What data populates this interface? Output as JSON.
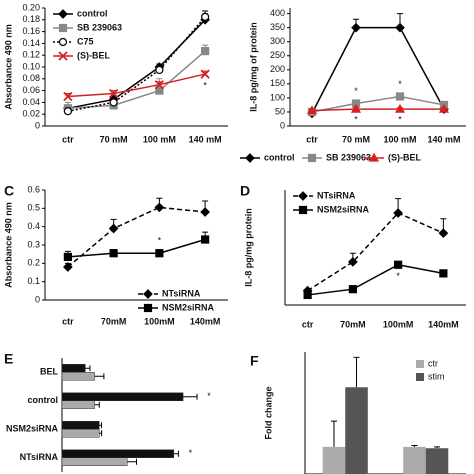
{
  "chart_data": [
    {
      "type": "line",
      "ylabel": "Absorbance 490 nm",
      "categories": [
        "ctr",
        "70 mM",
        "100 mM",
        "140 mM"
      ],
      "ylim": [
        0,
        0.2
      ],
      "yticks": [
        0,
        0.02,
        0.04,
        0.06,
        0.08,
        {
          "value": 0.1,
          "label": "0.10"
        },
        0.12,
        0.14,
        0.16,
        0.18,
        {
          "value": 0.2,
          "label": "0.20"
        }
      ],
      "legend": "upper left",
      "series": [
        {
          "name": "control",
          "color": "#000000",
          "dash": "solid",
          "marker": "diamond",
          "values": [
            0.03,
            0.045,
            0.1,
            0.18
          ],
          "errors": [
            0.005,
            0.005,
            0.005,
            0.01
          ]
        },
        {
          "name": "SB 239063",
          "color": "#888888",
          "dash": "solid",
          "marker": "square",
          "values": [
            0.03,
            0.035,
            0.06,
            0.127
          ],
          "errors": [
            0.01,
            0.01,
            0.02,
            0.01
          ]
        },
        {
          "name": "C75",
          "color": "#000000",
          "dash": "dotted",
          "marker": "circle-open",
          "values": [
            0.025,
            0.04,
            0.095,
            0.185
          ],
          "errors": [
            0.005,
            0.005,
            0.005,
            0.01
          ]
        },
        {
          "name": "(S)-BEL",
          "color": "#d42020",
          "dash": "solid",
          "marker": "x",
          "values": [
            0.05,
            0.055,
            0.07,
            0.088
          ],
          "errors": [
            0.005,
            0.005,
            0.005,
            0.005
          ]
        }
      ],
      "annotations": [
        "*"
      ]
    },
    {
      "type": "line",
      "ylabel": "IL-8 pg/mg of protein",
      "categories": [
        "ctr",
        "70 mM",
        "100 mM",
        "140 mM"
      ],
      "ylim": [
        0,
        420
      ],
      "yticks": [
        0,
        50,
        100,
        150,
        200,
        250,
        300,
        350,
        400
      ],
      "legend": "below",
      "series": [
        {
          "name": "control",
          "color": "#000000",
          "dash": "solid",
          "marker": "diamond",
          "values": [
            45,
            350,
            350,
            60
          ],
          "errors": [
            5,
            30,
            50,
            10
          ]
        },
        {
          "name": "SB 239063",
          "color": "#888888",
          "dash": "solid",
          "marker": "square",
          "values": [
            50,
            80,
            105,
            75
          ],
          "errors": [
            5,
            10,
            10,
            10
          ]
        },
        {
          "name": "(S)-BEL",
          "color": "#d42020",
          "dash": "solid",
          "marker": "triangle",
          "values": [
            55,
            60,
            60,
            60
          ],
          "errors": [
            5,
            5,
            5,
            5
          ]
        }
      ],
      "annotations": [
        "*",
        "*",
        "*",
        "*"
      ]
    },
    {
      "type": "line",
      "panel": "C",
      "ylabel": "Absorbance 490 nm",
      "categories": [
        "ctr",
        "70mM",
        "100mM",
        "140mM"
      ],
      "ylim": [
        0,
        0.6
      ],
      "yticks": [
        0,
        0.1,
        0.2,
        0.3,
        0.4,
        0.5,
        0.6
      ],
      "legend": "lower right",
      "series": [
        {
          "name": "NTsiRNA",
          "color": "#000000",
          "dash": "dashed",
          "marker": "diamond",
          "values": [
            0.18,
            0.39,
            0.505,
            0.48
          ],
          "errors": [
            0.02,
            0.05,
            0.05,
            0.06
          ]
        },
        {
          "name": "NSM2siRNA",
          "color": "#000000",
          "dash": "solid",
          "marker": "square",
          "values": [
            0.235,
            0.255,
            0.255,
            0.33
          ],
          "errors": [
            0.03,
            0.02,
            0.02,
            0.04
          ]
        }
      ],
      "annotations": [
        "*"
      ]
    },
    {
      "type": "line",
      "panel": "D",
      "ylabel": "IL-8 pg/mg protein",
      "categories": [
        "ctr",
        "70mM",
        "100mM",
        "140mM"
      ],
      "ylim": [
        0,
        800
      ],
      "legend": "upper left",
      "series": [
        {
          "name": "NTsiRNA",
          "color": "#000000",
          "dash": "dashed",
          "marker": "diamond",
          "values": [
            100,
            300,
            640,
            500
          ],
          "errors": [
            10,
            60,
            100,
            100
          ]
        },
        {
          "name": "NSM2siRNA",
          "color": "#000000",
          "dash": "solid",
          "marker": "square",
          "values": [
            70,
            110,
            280,
            220
          ],
          "errors": [
            10,
            10,
            20,
            20
          ]
        }
      ],
      "annotations": [
        "*"
      ]
    },
    {
      "type": "hbar",
      "panel": "E",
      "categories": [
        "BEL",
        "control",
        "NSM2siRNA",
        "NTsiRNA"
      ],
      "xlim": [
        0,
        3.5
      ],
      "series": [
        {
          "color": "#111111",
          "values": [
            0.5,
            2.6,
            0.8,
            2.4
          ],
          "errors": [
            0.1,
            0.3,
            0.05,
            0.1
          ]
        },
        {
          "color": "#aaaaaa",
          "values": [
            0.7,
            0.7,
            0.8,
            1.4
          ],
          "errors": [
            0.2,
            0.1,
            0.05,
            0.2
          ]
        }
      ],
      "annotations": [
        "*",
        "*"
      ]
    },
    {
      "type": "bar",
      "panel": "F",
      "ylabel": "Fold change",
      "categories": [
        null,
        null
      ],
      "ylim": [
        0,
        4.5
      ],
      "legend": "upper right",
      "series": [
        {
          "name": "ctr",
          "color": "#aaaaaa",
          "values": [
            1,
            1
          ],
          "errors": [
            0.95,
            0.05
          ]
        },
        {
          "name": "stim",
          "color": "#555555",
          "values": [
            3.2,
            0.95
          ],
          "errors": [
            1.1,
            0.05
          ]
        }
      ]
    }
  ]
}
